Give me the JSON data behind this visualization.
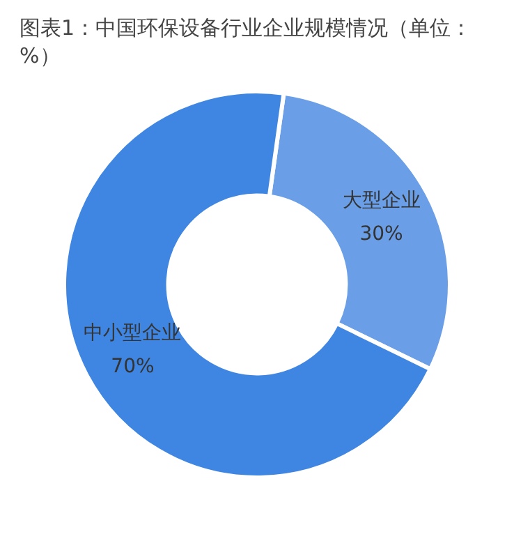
{
  "chart_data": {
    "type": "donut",
    "title": "图表1：中国环保设备行业企业规模情况（单位：%）",
    "categories": [
      "大型企业",
      "中小型企业"
    ],
    "values": [
      30,
      70
    ],
    "colors": [
      "#6a9fe8",
      "#3f86e2"
    ],
    "value_labels": [
      "30%",
      "70%"
    ],
    "legend": false
  }
}
